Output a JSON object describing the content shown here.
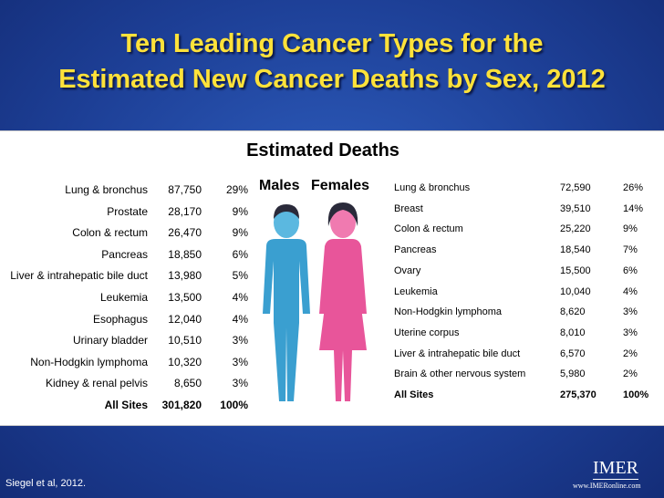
{
  "title": {
    "line1": "Ten Leading Cancer Types for the",
    "line2": "Estimated New Cancer Deaths by Sex, 2012"
  },
  "panel": {
    "heading": "Estimated Deaths",
    "males_label": "Males",
    "females_label": "Females"
  },
  "males": {
    "rows": [
      [
        "Lung & bronchus",
        "87,750",
        "29%"
      ],
      [
        "Prostate",
        "28,170",
        "9%"
      ],
      [
        "Colon & rectum",
        "26,470",
        "9%"
      ],
      [
        "Pancreas",
        "18,850",
        "6%"
      ],
      [
        "Liver & intrahepatic bile duct",
        "13,980",
        "5%"
      ],
      [
        "Leukemia",
        "13,500",
        "4%"
      ],
      [
        "Esophagus",
        "12,040",
        "4%"
      ],
      [
        "Urinary bladder",
        "10,510",
        "3%"
      ],
      [
        "Non-Hodgkin lymphoma",
        "10,320",
        "3%"
      ],
      [
        "Kidney & renal pelvis",
        "8,650",
        "3%"
      ]
    ],
    "total": [
      "All Sites",
      "301,820",
      "100%"
    ]
  },
  "females": {
    "rows": [
      [
        "Lung & bronchus",
        "72,590",
        "26%"
      ],
      [
        "Breast",
        "39,510",
        "14%"
      ],
      [
        "Colon & rectum",
        "25,220",
        "9%"
      ],
      [
        "Pancreas",
        "18,540",
        "7%"
      ],
      [
        "Ovary",
        "15,500",
        "6%"
      ],
      [
        "Leukemia",
        "10,040",
        "4%"
      ],
      [
        "Non-Hodgkin lymphoma",
        "8,620",
        "3%"
      ],
      [
        "Uterine corpus",
        "8,010",
        "3%"
      ],
      [
        "Liver & intrahepatic bile duct",
        "6,570",
        "2%"
      ],
      [
        "Brain & other nervous system",
        "5,980",
        "2%"
      ]
    ],
    "total": [
      "All Sites",
      "275,370",
      "100%"
    ]
  },
  "footer": {
    "citation": "Siegel et al, 2012.",
    "logo": "IMER",
    "url": "www.IMERonline.com"
  }
}
